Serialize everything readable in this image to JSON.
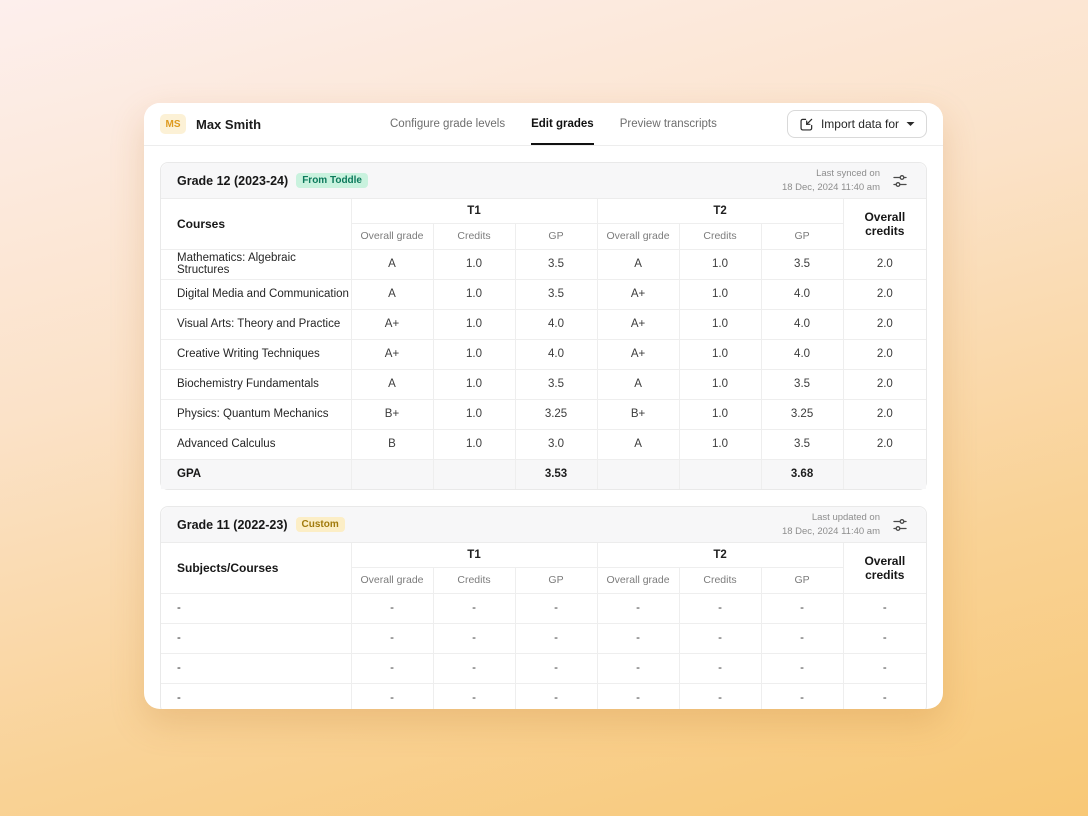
{
  "header": {
    "avatar": "MS",
    "name": "Max Smith",
    "tabs": [
      "Configure grade levels",
      "Edit grades",
      "Preview transcripts"
    ],
    "import_label": "Import data for"
  },
  "colors": {
    "avatar_bg": "#fcf1d6",
    "avatar_text": "#de9a1f",
    "badge_from_toddle_bg": "#c9f2de",
    "badge_from_toddle_text": "#0c7a5c",
    "badge_custom_bg": "#fceec6",
    "badge_custom_text": "#a17a0c",
    "active_tab_underline": "#111111"
  },
  "grade12": {
    "title": "Grade 12 (2023-24)",
    "badge": "From Toddle",
    "updated_line1": "Last synced on",
    "updated_line2": "18 Dec, 2024 11:40 am",
    "col_first": "Courses",
    "col_t1": "T1",
    "col_t2": "T2",
    "col_overall": "Overall credits",
    "sub_grade": "Overall grade",
    "sub_credits": "Credits",
    "sub_gp": "GP",
    "rows": [
      [
        "Mathematics: Algebraic Structures",
        "A",
        "1.0",
        "3.5",
        "A",
        "1.0",
        "3.5",
        "2.0"
      ],
      [
        "Digital Media and Communication",
        "A",
        "1.0",
        "3.5",
        "A+",
        "1.0",
        "4.0",
        "2.0"
      ],
      [
        "Visual Arts: Theory and Practice",
        "A+",
        "1.0",
        "4.0",
        "A+",
        "1.0",
        "4.0",
        "2.0"
      ],
      [
        "Creative Writing Techniques",
        "A+",
        "1.0",
        "4.0",
        "A+",
        "1.0",
        "4.0",
        "2.0"
      ],
      [
        "Biochemistry Fundamentals",
        "A",
        "1.0",
        "3.5",
        "A",
        "1.0",
        "3.5",
        "2.0"
      ],
      [
        "Physics: Quantum Mechanics",
        "B+",
        "1.0",
        "3.25",
        "B+",
        "1.0",
        "3.25",
        "2.0"
      ],
      [
        "Advanced Calculus",
        "B",
        "1.0",
        "3.0",
        "A",
        "1.0",
        "3.5",
        "2.0"
      ]
    ],
    "gpa_label": "GPA",
    "gpa_t1": "3.53",
    "gpa_t2": "3.68"
  },
  "grade11": {
    "title": "Grade 11 (2022-23)",
    "badge": "Custom",
    "updated_line1": "Last updated on",
    "updated_line2": "18 Dec, 2024 11:40 am",
    "col_first": "Subjects/Courses",
    "col_t1": "T1",
    "col_t2": "T2",
    "col_overall": "Overall credits",
    "sub_grade": "Overall grade",
    "sub_credits": "Credits",
    "sub_gp": "GP",
    "rows": [
      [
        "-",
        "-",
        "-",
        "-",
        "-",
        "-",
        "-",
        "-"
      ],
      [
        "-",
        "-",
        "-",
        "-",
        "-",
        "-",
        "-",
        "-"
      ],
      [
        "-",
        "-",
        "-",
        "-",
        "-",
        "-",
        "-",
        "-"
      ],
      [
        "-",
        "-",
        "-",
        "-",
        "-",
        "-",
        "-",
        "-"
      ]
    ]
  }
}
